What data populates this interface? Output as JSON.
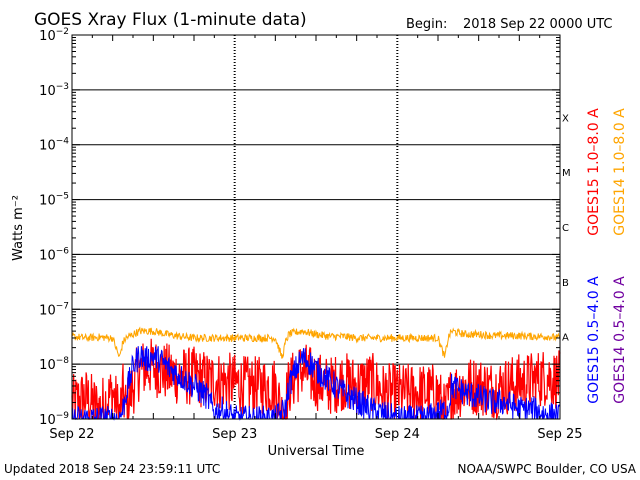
{
  "header": {
    "title": "GOES Xray Flux (1-minute data)",
    "begin_label": "Begin:",
    "begin_value": "2018 Sep 22 0000 UTC"
  },
  "footer": {
    "updated": "Updated 2018 Sep 24 23:59:11 UTC",
    "credit": "NOAA/SWPC Boulder, CO USA"
  },
  "colors": {
    "goes15_long": "#ff0000",
    "goes14_long": "#ffa500",
    "goes15_short": "#0000ff",
    "goes14_short": "#7000a0",
    "frame": "#000000"
  },
  "chart_data": {
    "type": "line",
    "title": "GOES Xray Flux (1-minute data)",
    "xlabel": "Universal Time",
    "ylabel": "Watts m⁻²",
    "y_scale": "log",
    "ylim": [
      1e-09,
      0.01
    ],
    "xlim": [
      0,
      72
    ],
    "x_unit": "hours since 2018 Sep 22 0000 UTC",
    "x_ticks": [
      {
        "value": 0,
        "label": "Sep 22"
      },
      {
        "value": 24,
        "label": "Sep 23"
      },
      {
        "value": 48,
        "label": "Sep 24"
      },
      {
        "value": 72,
        "label": "Sep 25"
      }
    ],
    "y_ticks": [
      {
        "value": 0.01,
        "base": "10",
        "exp": "−2"
      },
      {
        "value": 0.001,
        "base": "10",
        "exp": "−3"
      },
      {
        "value": 0.0001,
        "base": "10",
        "exp": "−4"
      },
      {
        "value": 1e-05,
        "base": "10",
        "exp": "−5"
      },
      {
        "value": 1e-06,
        "base": "10",
        "exp": "−6"
      },
      {
        "value": 1e-07,
        "base": "10",
        "exp": "−7"
      },
      {
        "value": 1e-08,
        "base": "10",
        "exp": "−8"
      },
      {
        "value": 1e-09,
        "base": "10",
        "exp": "−9"
      }
    ],
    "flare_classes": [
      {
        "label": "X",
        "lower": 0.0001
      },
      {
        "label": "M",
        "lower": 1e-05
      },
      {
        "label": "C",
        "lower": 1e-06
      },
      {
        "label": "B",
        "lower": 1e-07
      },
      {
        "label": "A",
        "lower": 1e-08
      }
    ],
    "legend": [
      {
        "name": "GOES15 1.0–8.0 A",
        "color": "#ff0000"
      },
      {
        "name": "GOES14 1.0–8.0 A",
        "color": "#ffa500"
      },
      {
        "name": "GOES15 0.5–4.0 A",
        "color": "#0000ff"
      },
      {
        "name": "GOES14 0.5–4.0 A",
        "color": "#7000a0"
      }
    ],
    "series": [
      {
        "name": "GOES15 1.0–8.0 A",
        "color": "#ff0000",
        "x": [
          0,
          2,
          4,
          6,
          7,
          7.5,
          8,
          9,
          10,
          12,
          14,
          16,
          18,
          20,
          22,
          24,
          26,
          28,
          30,
          31,
          31.5,
          32,
          33,
          34,
          36,
          38,
          40,
          42,
          44,
          46,
          48,
          50,
          52,
          54,
          55,
          55.5,
          56,
          58,
          60,
          62,
          64,
          66,
          68,
          70,
          72
        ],
        "y": [
          1.8e-09,
          2.5e-09,
          1.5e-09,
          3e-09,
          1.2e-09,
          3e-09,
          1.5e-09,
          4e-09,
          8e-09,
          9e-09,
          7e-09,
          6e-09,
          6e-09,
          5e-09,
          5e-09,
          4.5e-09,
          4e-09,
          4e-09,
          4e-09,
          1.2e-09,
          2e-09,
          4e-09,
          6e-09,
          8e-09,
          5e-09,
          4e-09,
          5e-09,
          4e-09,
          5e-09,
          3e-09,
          3e-09,
          3e-09,
          3e-09,
          3e-09,
          1.2e-09,
          2e-09,
          3e-09,
          4e-09,
          4e-09,
          3.5e-09,
          4e-09,
          4.5e-09,
          5e-09,
          6e-09,
          5e-09
        ]
      },
      {
        "name": "GOES14 1.0–8.0 A",
        "color": "#ffa500",
        "x": [
          0,
          2,
          4,
          6,
          7,
          7.5,
          8,
          9,
          10,
          12,
          14,
          16,
          18,
          20,
          22,
          24,
          26,
          28,
          30,
          31,
          31.5,
          32,
          33,
          34,
          36,
          38,
          40,
          42,
          44,
          46,
          48,
          50,
          52,
          54,
          55,
          55.5,
          56,
          58,
          60,
          62,
          64,
          66,
          68,
          70,
          72
        ],
        "y": [
          3.2e-08,
          3e-08,
          3.1e-08,
          3e-08,
          1.3e-08,
          2.5e-08,
          3e-08,
          3.5e-08,
          4e-08,
          4e-08,
          3.5e-08,
          3.2e-08,
          3e-08,
          3e-08,
          3e-08,
          3e-08,
          3e-08,
          3e-08,
          3e-08,
          1.3e-08,
          2.5e-08,
          3.5e-08,
          3.8e-08,
          4e-08,
          3.5e-08,
          3.2e-08,
          3.2e-08,
          3e-08,
          3e-08,
          3e-08,
          3e-08,
          3e-08,
          3e-08,
          3e-08,
          1.3e-08,
          3e-08,
          4e-08,
          3.5e-08,
          3.5e-08,
          3.3e-08,
          3.3e-08,
          3.3e-08,
          3.2e-08,
          3.2e-08,
          3e-08
        ]
      },
      {
        "name": "GOES15 0.5–4.0 A",
        "color": "#0000ff",
        "x": [
          0,
          6,
          7,
          7.5,
          8,
          9,
          10,
          11,
          12,
          13,
          14,
          16,
          18,
          20,
          21,
          22,
          24,
          28,
          30,
          31.5,
          32,
          33,
          34,
          35,
          36,
          38,
          40,
          44,
          48,
          52,
          55.5,
          56,
          58,
          60,
          62,
          64,
          66,
          68,
          70,
          72
        ],
        "y": [
          1e-09,
          1e-09,
          1e-09,
          1.5e-09,
          3e-09,
          9e-09,
          1.5e-08,
          1.2e-08,
          1.4e-08,
          1.2e-08,
          9e-09,
          6e-09,
          4e-09,
          2.5e-09,
          1.3e-09,
          1.5e-09,
          1e-09,
          1e-09,
          1e-09,
          1.5e-09,
          4e-09,
          8e-09,
          1.3e-08,
          1.1e-08,
          8e-09,
          5e-09,
          3e-09,
          1.5e-09,
          1e-09,
          1e-09,
          1.5e-09,
          4e-09,
          3e-09,
          2.5e-09,
          2e-09,
          2e-09,
          1.5e-09,
          1.5e-09,
          1.2e-09,
          1.1e-09
        ]
      },
      {
        "name": "GOES14 0.5–4.0 A",
        "color": "#7000a0",
        "x": [
          0,
          72
        ],
        "y": [
          null,
          null
        ]
      }
    ],
    "grid": "horizontal at decades; dotted verticals at day boundaries"
  }
}
